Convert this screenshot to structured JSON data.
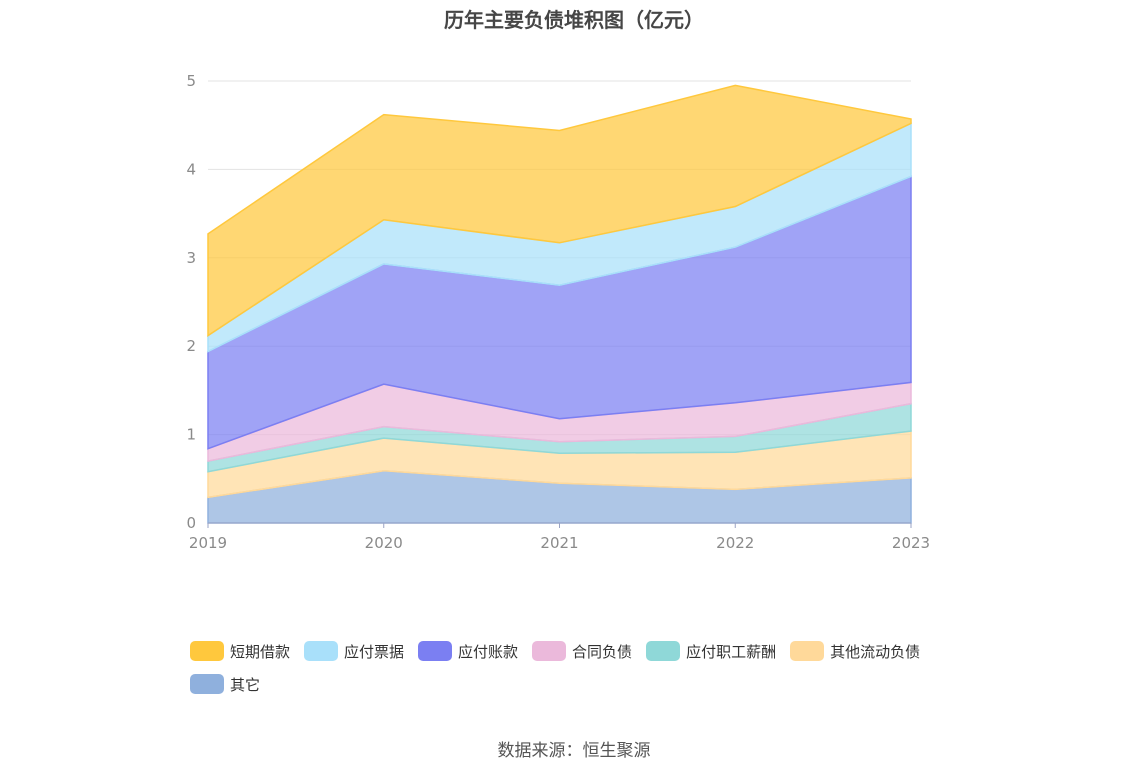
{
  "title": "历年主要负债堆积图（亿元）",
  "source": "数据来源：恒生聚源",
  "chart_data": {
    "type": "area",
    "stacked": true,
    "categories": [
      "2019",
      "2020",
      "2021",
      "2022",
      "2023"
    ],
    "ylim": [
      0,
      5
    ],
    "yticks": [
      0,
      1,
      2,
      3,
      4,
      5
    ],
    "grid": true,
    "legend_position": "bottom",
    "series": [
      {
        "name": "其它",
        "color": "#8fb0dd",
        "values": [
          0.29,
          0.59,
          0.45,
          0.38,
          0.51
        ]
      },
      {
        "name": "其他流动负债",
        "color": "#ffd99a",
        "values": [
          0.29,
          0.37,
          0.34,
          0.42,
          0.53
        ]
      },
      {
        "name": "应付职工薪酬",
        "color": "#8fd8d8",
        "values": [
          0.12,
          0.13,
          0.13,
          0.18,
          0.31
        ]
      },
      {
        "name": "合同负债",
        "color": "#ebb9db",
        "values": [
          0.14,
          0.48,
          0.26,
          0.38,
          0.24
        ]
      },
      {
        "name": "应付账款",
        "color": "#7b7ff2",
        "values": [
          1.1,
          1.36,
          1.51,
          1.76,
          2.33
        ]
      },
      {
        "name": "应付票据",
        "color": "#a9e0fa",
        "values": [
          0.18,
          0.5,
          0.48,
          0.46,
          0.6
        ]
      },
      {
        "name": "短期借款",
        "color": "#ffc83d",
        "values": [
          1.15,
          1.19,
          1.27,
          1.37,
          0.05
        ]
      }
    ],
    "legend_order": [
      "短期借款",
      "应付票据",
      "应付账款",
      "合同负债",
      "应付职工薪酬",
      "其他流动负债",
      "其它"
    ]
  }
}
